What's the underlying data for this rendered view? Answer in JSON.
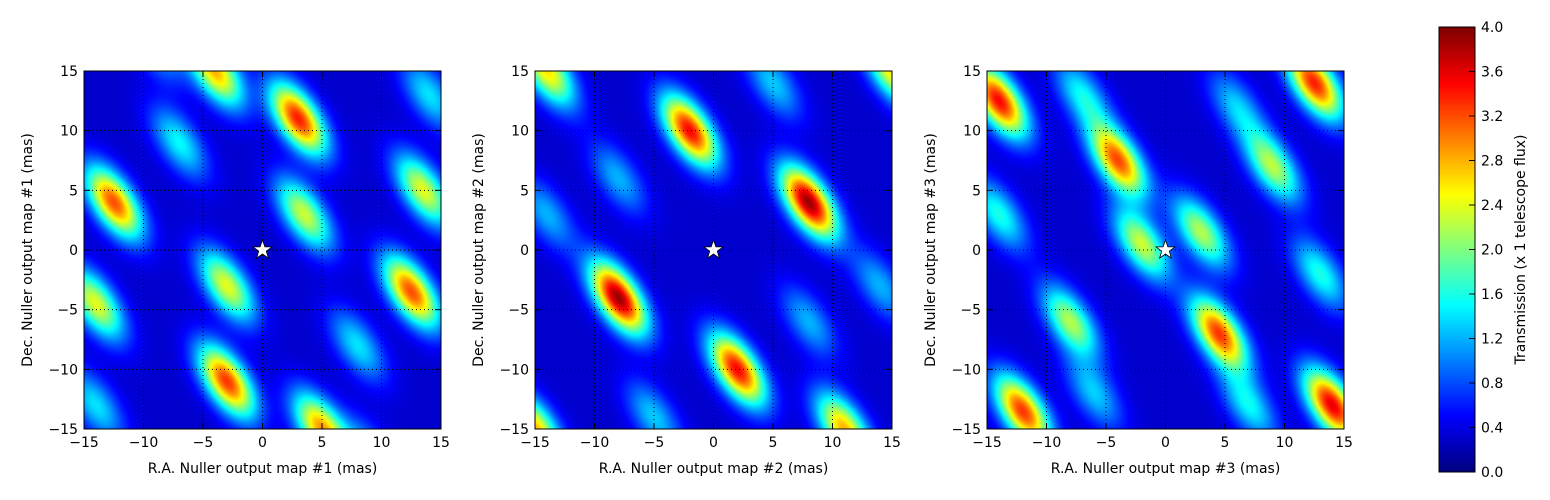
{
  "chart_data": {
    "type": "heatmap",
    "colormap": "jet",
    "value_range": [
      0,
      4
    ],
    "colorbar": {
      "label": "Transmission (x 1 telescope flux)",
      "ticks": [
        "0.0",
        "0.4",
        "0.8",
        "1.2",
        "1.6",
        "2.0",
        "2.4",
        "2.8",
        "3.2",
        "3.6",
        "4.0"
      ]
    },
    "panels": [
      {
        "xlabel": "R.A. Nuller output map #1 (mas)",
        "ylabel": "Dec. Nuller output map #1 (mas)",
        "xlim": [
          -15,
          15
        ],
        "ylim": [
          -15,
          15
        ],
        "xticks": [
          "−15",
          "−10",
          "−5",
          "0",
          "5",
          "10",
          "15"
        ],
        "yticks": [
          "−15",
          "−10",
          "−5",
          "0",
          "5",
          "10",
          "15"
        ],
        "grid": true,
        "marker": {
          "type": "star",
          "x": 0,
          "y": 0
        },
        "background": 0.3,
        "peaks": [
          [
            3,
            11,
            3.4
          ],
          [
            -12.5,
            4,
            3.2
          ],
          [
            12.5,
            -3.5,
            3.2
          ],
          [
            -3,
            -11,
            3.3
          ],
          [
            -4,
            15,
            2.8
          ],
          [
            5,
            -15,
            2.9
          ],
          [
            13.5,
            5,
            2.4
          ],
          [
            -14,
            -4.5,
            2.4
          ],
          [
            3.5,
            3,
            2.3
          ],
          [
            -3,
            -3,
            2.4
          ],
          [
            -7,
            9,
            1.5
          ],
          [
            8,
            -8,
            1.4
          ],
          [
            -9,
            17,
            1.2
          ],
          [
            9,
            -17,
            1.2
          ],
          [
            14,
            13,
            1.4
          ],
          [
            -14,
            -13,
            1.4
          ]
        ]
      },
      {
        "xlabel": "R.A. Nuller output map #2 (mas)",
        "ylabel": "Dec. Nuller output map #2 (mas)",
        "xlim": [
          -15,
          15
        ],
        "ylim": [
          -15,
          15
        ],
        "xticks": [
          "−15",
          "−10",
          "−5",
          "0",
          "5",
          "10",
          "15"
        ],
        "yticks": [
          "−15",
          "−10",
          "−5",
          "0",
          "5",
          "10",
          "15"
        ],
        "grid": true,
        "marker": {
          "type": "star",
          "x": 0,
          "y": 0
        },
        "background": 0.3,
        "peaks": [
          [
            -2,
            10,
            3.5
          ],
          [
            8,
            4,
            3.9
          ],
          [
            -8,
            -4,
            3.9
          ],
          [
            2,
            -10,
            3.5
          ],
          [
            -14,
            15,
            2.6
          ],
          [
            15,
            15,
            2.6
          ],
          [
            -15,
            -15,
            2.8
          ],
          [
            11,
            -15,
            2.8
          ],
          [
            -8,
            6,
            1.2
          ],
          [
            8,
            -6,
            1.2
          ],
          [
            5,
            14,
            1.3
          ],
          [
            -5,
            -14,
            1.3
          ],
          [
            -14,
            3,
            1.2
          ],
          [
            14,
            -3,
            1.2
          ]
        ]
      },
      {
        "xlabel": "R.A. Nuller output map #3 (mas)",
        "ylabel": "Dec. Nuller output map #3 (mas)",
        "xlim": [
          -15,
          15
        ],
        "ylim": [
          -15,
          15
        ],
        "xticks": [
          "−15",
          "−10",
          "−5",
          "0",
          "5",
          "10",
          "15"
        ],
        "yticks": [
          "−15",
          "−10",
          "−5",
          "0",
          "5",
          "10",
          "15"
        ],
        "grid": true,
        "marker": {
          "type": "star",
          "x": 0,
          "y": 0
        },
        "background": 0.3,
        "peaks": [
          [
            -14,
            12.5,
            3.5
          ],
          [
            12.5,
            14,
            3.4
          ],
          [
            -4,
            7.5,
            3.2
          ],
          [
            4.5,
            -7,
            3.3
          ],
          [
            -12,
            -13.5,
            3.3
          ],
          [
            14,
            -13,
            3.6
          ],
          [
            -2,
            0.5,
            2.3
          ],
          [
            3,
            1.5,
            2.2
          ],
          [
            -8,
            -6,
            2.2
          ],
          [
            9,
            7,
            2.2
          ],
          [
            -14,
            3,
            1.6
          ],
          [
            13,
            -2,
            1.6
          ],
          [
            -7,
            13,
            1.5
          ],
          [
            7,
            -13,
            1.5
          ],
          [
            6,
            12,
            1.3
          ],
          [
            -6,
            -12,
            1.3
          ]
        ]
      }
    ]
  }
}
